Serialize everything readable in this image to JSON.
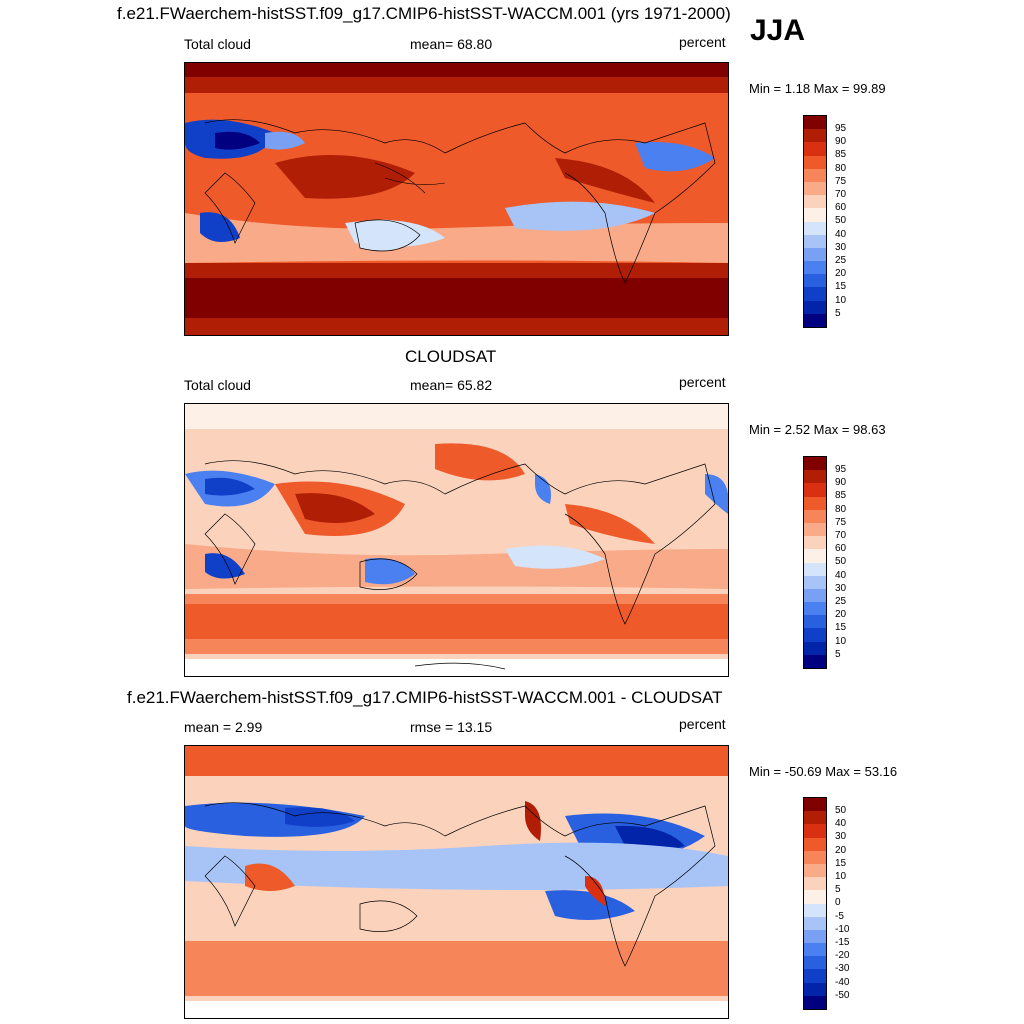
{
  "season": "JJA",
  "panels": [
    {
      "id": "model",
      "title": "f.e21.FWaerchem-histSST.f09_g17.CMIP6-histSST-WACCM.001 (yrs 1971-2000)",
      "left_label": "Total cloud",
      "center_label": "mean=  68.80",
      "right_label": "percent",
      "minmax": "Min =   1.18 Max =  99.89",
      "colorbar_ticks": [
        "95",
        "90",
        "85",
        "80",
        "75",
        "70",
        "60",
        "50",
        "40",
        "30",
        "25",
        "20",
        "15",
        "10",
        "5"
      ]
    },
    {
      "id": "obs",
      "title": "CLOUDSAT",
      "left_label": "Total cloud",
      "center_label": "mean=  65.82",
      "right_label": "percent",
      "minmax": "Min =   2.52 Max =  98.63",
      "colorbar_ticks": [
        "95",
        "90",
        "85",
        "80",
        "75",
        "70",
        "60",
        "50",
        "40",
        "30",
        "25",
        "20",
        "15",
        "10",
        "5"
      ]
    },
    {
      "id": "diff",
      "title": "f.e21.FWaerchem-histSST.f09_g17.CMIP6-histSST-WACCM.001 - CLOUDSAT",
      "left_label": "mean =   2.99",
      "center_label": "rmse =  13.15",
      "right_label": "percent",
      "minmax": "Min = -50.69 Max =  53.16",
      "colorbar_ticks": [
        "50",
        "40",
        "30",
        "20",
        "15",
        "10",
        "5",
        "0",
        "-5",
        "-10",
        "-15",
        "-20",
        "-30",
        "-40",
        "-50"
      ]
    }
  ],
  "colors": {
    "abs_scale": [
      "#000080",
      "#0224a8",
      "#1040c8",
      "#2860e0",
      "#4a80f0",
      "#7aa0f4",
      "#a8c4f6",
      "#d4e4fa",
      "#fdf0e6",
      "#fbd2bc",
      "#f9aa88",
      "#f6855a",
      "#ee5a2a",
      "#d83010",
      "#b01e06",
      "#800000"
    ],
    "diff_scale": [
      "#000080",
      "#0224a8",
      "#1040c8",
      "#2860e0",
      "#4a80f0",
      "#7aa0f4",
      "#a8c4f6",
      "#d4e4fa",
      "#fdf0e6",
      "#fbd2bc",
      "#f9aa88",
      "#f6855a",
      "#ee5a2a",
      "#d83010",
      "#b01e06",
      "#800000"
    ]
  }
}
